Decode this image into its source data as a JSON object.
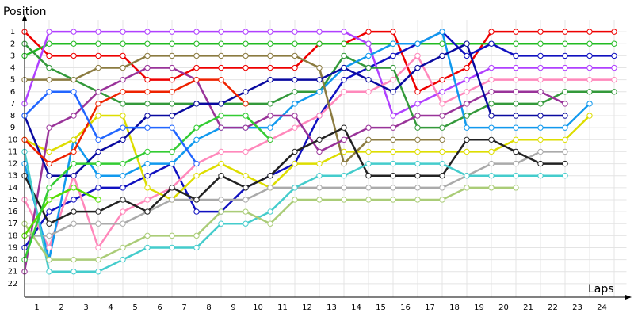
{
  "chart_data": {
    "type": "line",
    "title": "Position",
    "x_label": "Laps",
    "x": [
      0,
      1,
      2,
      3,
      4,
      5,
      6,
      7,
      8,
      9,
      10,
      11,
      12,
      13,
      14,
      15,
      16,
      17,
      18,
      19,
      20,
      21,
      22,
      23,
      24
    ],
    "xlim": [
      0,
      24.5
    ],
    "xticks": [
      1,
      2,
      3,
      4,
      5,
      6,
      7,
      8,
      9,
      10,
      11,
      12,
      13,
      14,
      15,
      16,
      17,
      18,
      19,
      20,
      21,
      22,
      23,
      24
    ],
    "ylim": [
      23,
      0
    ],
    "yticks": [
      1,
      2,
      3,
      4,
      5,
      6,
      7,
      8,
      9,
      10,
      11,
      12,
      13,
      14,
      15,
      16,
      17,
      18,
      19,
      20,
      21,
      22
    ],
    "grid": true,
    "series": [
      {
        "color": "#ee0000",
        "values": [
          1,
          3,
          3,
          3,
          3,
          5,
          5,
          4,
          4,
          4,
          4,
          4,
          2,
          2,
          1,
          1,
          6,
          5,
          4,
          1,
          1,
          1,
          1,
          1,
          1
        ]
      },
      {
        "color": "#22bb22",
        "values": [
          3,
          2,
          2,
          2,
          2,
          2,
          2,
          2,
          2,
          2,
          2,
          2,
          2,
          2,
          2,
          2,
          2,
          2,
          2,
          2,
          2,
          2,
          2,
          2,
          2
        ]
      },
      {
        "color": "#1010c0",
        "values": [
          19,
          16,
          15,
          14,
          14,
          13,
          12,
          16,
          16,
          14,
          13,
          12,
          8,
          5,
          4,
          3,
          2,
          1,
          3,
          2,
          3,
          3,
          3,
          3,
          3
        ]
      },
      {
        "color": "#b040ff",
        "values": [
          7,
          1,
          1,
          1,
          1,
          1,
          1,
          1,
          1,
          1,
          1,
          1,
          1,
          1,
          2,
          8,
          7,
          6,
          5,
          4,
          4,
          4,
          4,
          4,
          4
        ]
      },
      {
        "color": "#ff88bb",
        "values": [
          15,
          19,
          13,
          19,
          16,
          15,
          14,
          12,
          11,
          11,
          10,
          9,
          8,
          6,
          6,
          5,
          3,
          7,
          6,
          5,
          5,
          5,
          5,
          5,
          5
        ]
      },
      {
        "color": "#33993a",
        "values": [
          2,
          4,
          5,
          6,
          7,
          7,
          7,
          7,
          7,
          7,
          7,
          6,
          6,
          3,
          4,
          4,
          9,
          9,
          8,
          7,
          7,
          7,
          6,
          6,
          6
        ]
      },
      {
        "color": "#1199ee",
        "values": [
          12,
          20,
          10,
          13,
          13,
          12,
          12,
          10,
          9,
          9,
          9,
          7,
          6,
          4,
          3,
          2,
          2,
          1,
          9,
          9,
          9,
          9,
          9,
          7,
          null
        ]
      },
      {
        "color": "#dddd00",
        "values": [
          10,
          11,
          10,
          8,
          8,
          14,
          15,
          13,
          12,
          13,
          14,
          12,
          12,
          11,
          11,
          11,
          11,
          11,
          11,
          11,
          10,
          10,
          10,
          8,
          null
        ]
      },
      {
        "color": "#8b7b40",
        "values": [
          5,
          5,
          5,
          4,
          4,
          3,
          3,
          3,
          3,
          3,
          3,
          3,
          4,
          12,
          10,
          10,
          10,
          10,
          null,
          null,
          null,
          null,
          null,
          null,
          null
        ]
      },
      {
        "color": "#993399",
        "values": [
          21,
          9,
          8,
          6,
          5,
          4,
          4,
          5,
          9,
          9,
          8,
          8,
          11,
          10,
          9,
          9,
          8,
          8,
          7,
          6,
          6,
          6,
          7,
          null,
          null
        ]
      },
      {
        "color": "#0a0aa0",
        "values": [
          8,
          13,
          13,
          11,
          10,
          8,
          8,
          7,
          7,
          6,
          5,
          5,
          5,
          4,
          5,
          6,
          4,
          3,
          2,
          8,
          8,
          8,
          8,
          null,
          null
        ]
      },
      {
        "color": "#aaaaaa",
        "values": [
          18,
          18,
          17,
          17,
          17,
          16,
          15,
          15,
          15,
          15,
          14,
          14,
          14,
          14,
          14,
          14,
          14,
          14,
          13,
          12,
          12,
          11,
          11,
          null,
          null
        ]
      },
      {
        "color": "#222222",
        "values": [
          13,
          17,
          16,
          16,
          15,
          16,
          14,
          15,
          13,
          14,
          13,
          11,
          10,
          9,
          13,
          13,
          13,
          13,
          10,
          10,
          11,
          12,
          12,
          null,
          null
        ]
      },
      {
        "color": "#44cccc",
        "values": [
          11,
          21,
          21,
          21,
          20,
          19,
          19,
          19,
          17,
          17,
          16,
          14,
          13,
          13,
          12,
          12,
          12,
          12,
          13,
          13,
          13,
          13,
          13,
          null,
          null
        ]
      },
      {
        "color": "#aacc77",
        "values": [
          17,
          20,
          20,
          20,
          19,
          18,
          18,
          18,
          16,
          16,
          17,
          15,
          15,
          15,
          15,
          15,
          15,
          15,
          14,
          14,
          14,
          null,
          null,
          null,
          null
        ]
      },
      {
        "color": "#55dd00",
        "values": [
          18,
          15,
          14,
          15,
          null,
          null,
          null,
          null,
          null,
          null,
          null,
          null,
          null,
          null,
          null,
          null,
          null,
          null,
          null,
          null,
          null,
          null,
          null,
          null,
          null
        ]
      },
      {
        "color": "#33cc33",
        "values": [
          20,
          14,
          12,
          12,
          12,
          11,
          11,
          9,
          8,
          8,
          10,
          null,
          null,
          null,
          null,
          null,
          null,
          null,
          null,
          null,
          null,
          null,
          null,
          null,
          null
        ]
      },
      {
        "color": "#ee2200",
        "values": [
          10,
          12,
          11,
          7,
          6,
          6,
          6,
          5,
          5,
          7,
          null,
          null,
          null,
          null,
          null,
          null,
          null,
          null,
          null,
          null,
          null,
          null,
          null,
          null,
          null
        ]
      },
      {
        "color": "#2266ff",
        "values": [
          8,
          6,
          6,
          10,
          9,
          9,
          9,
          12,
          null,
          null,
          null,
          null,
          null,
          null,
          null,
          null,
          null,
          null,
          null,
          null,
          null,
          null,
          null,
          null,
          null
        ]
      }
    ]
  }
}
